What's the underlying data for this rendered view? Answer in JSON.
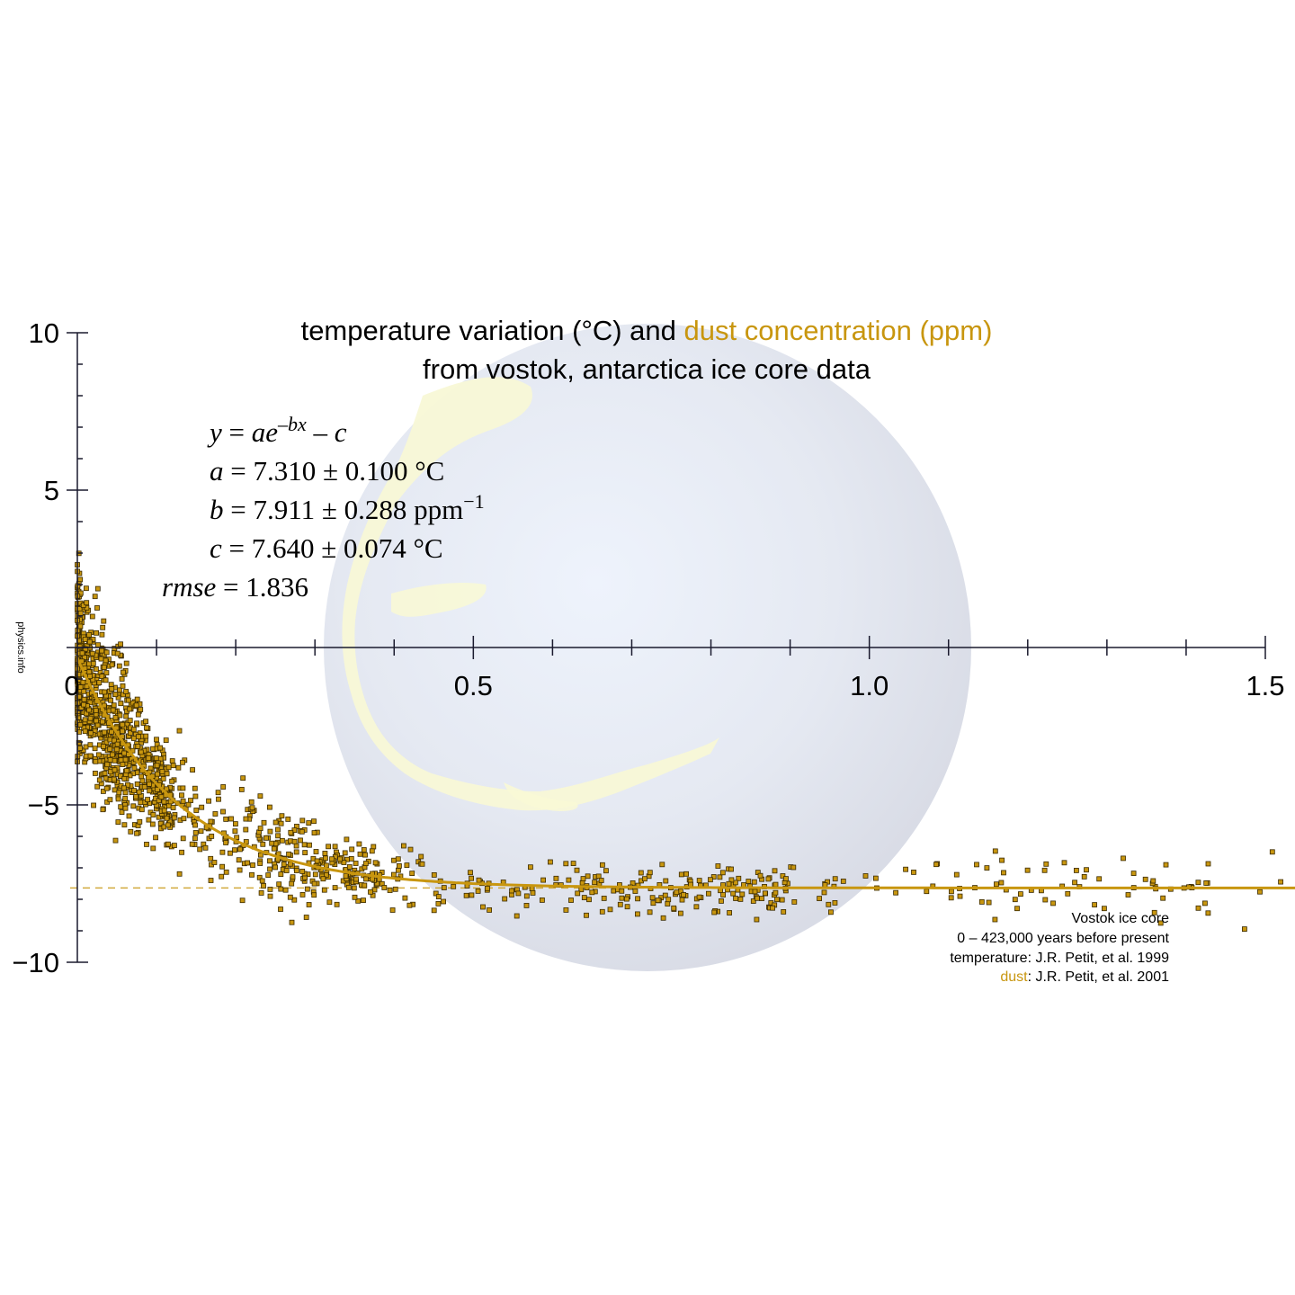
{
  "chart_data": {
    "type": "scatter",
    "title_part1": "temperature variation (°C) and ",
    "title_part2": "dust concentration (ppm)",
    "subtitle": "from vostok, antarctica ice core data",
    "xlim": [
      0,
      1.5
    ],
    "ylim": [
      -10,
      10
    ],
    "x_ticks": [
      "0.5",
      "1.0",
      "1.5"
    ],
    "x_ticks_values": [
      0.5,
      1.0,
      1.5
    ],
    "x_origin_label": "0",
    "y_ticks": [
      "10",
      "5",
      "−5",
      "−10"
    ],
    "y_ticks_values": [
      10,
      5,
      -5,
      -10
    ],
    "fit": {
      "model": "y = a·exp(−b·x) − c",
      "a": 7.31,
      "b": 7.911,
      "c": 7.64,
      "a_text": "7.310 ± 0.100 °C",
      "b_text": "7.911 ± 0.288 ppm",
      "b_sup": "−1",
      "c_text": "7.640 ± 0.074 °C",
      "rmse_text": "1.836"
    },
    "series": [
      {
        "name": "dust",
        "color": "#c8960f"
      }
    ],
    "sources": {
      "line1": "Vostok ice core",
      "line2": "0 – 423,000 years before present",
      "line3": "temperature: J.R. Petit, et al. 1999",
      "line4_colored": "dust",
      "line4_rest": ": J.R. Petit, et al. 2001"
    },
    "watermark": "physics.info"
  },
  "colors": {
    "accent": "#c8960f",
    "axis": "#1a1a2e",
    "marker_stroke": "#3a2a00",
    "globe": "#e2e6ef",
    "land": "#f7f7d2"
  }
}
